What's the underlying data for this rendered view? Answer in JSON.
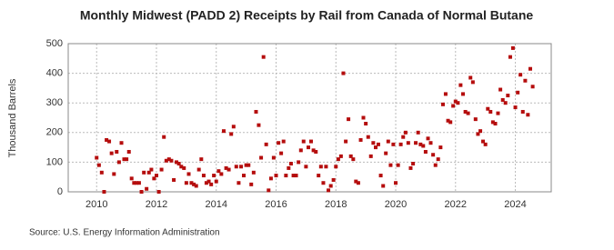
{
  "chart_data": {
    "type": "scatter",
    "title": "Monthly Midwest (PADD 2) Receipts by Rail from Canada of Normal Butane",
    "y_label": "Thousand Barrels",
    "source": "Source: U.S. Energy Information Administration",
    "xlim": [
      2009.05,
      2025.2
    ],
    "xticks": [
      2010,
      2012,
      2014,
      2016,
      2018,
      2020,
      2022,
      2024
    ],
    "ylim": [
      0,
      500
    ],
    "yticks": [
      0,
      100,
      200,
      300,
      400,
      500
    ],
    "grid": true,
    "series": [
      {
        "name": "Normal Butane",
        "color": "#b50d0d",
        "x": [
          2010,
          2010.08,
          2010.17,
          2010.25,
          2010.33,
          2010.42,
          2010.5,
          2010.58,
          2010.67,
          2010.75,
          2010.83,
          2010.92,
          2011,
          2011.08,
          2011.17,
          2011.25,
          2011.33,
          2011.42,
          2011.5,
          2011.58,
          2011.67,
          2011.75,
          2011.83,
          2011.92,
          2012,
          2012.08,
          2012.17,
          2012.25,
          2012.33,
          2012.42,
          2012.5,
          2012.58,
          2012.67,
          2012.75,
          2012.83,
          2012.92,
          2013,
          2013.08,
          2013.17,
          2013.25,
          2013.33,
          2013.42,
          2013.5,
          2013.58,
          2013.67,
          2013.75,
          2013.83,
          2013.92,
          2014,
          2014.08,
          2014.17,
          2014.25,
          2014.33,
          2014.42,
          2014.5,
          2014.58,
          2014.67,
          2014.75,
          2014.83,
          2014.92,
          2015,
          2015.08,
          2015.17,
          2015.25,
          2015.33,
          2015.42,
          2015.5,
          2015.58,
          2015.67,
          2015.75,
          2015.83,
          2015.92,
          2016,
          2016.08,
          2016.17,
          2016.25,
          2016.33,
          2016.42,
          2016.5,
          2016.58,
          2016.67,
          2016.75,
          2016.83,
          2016.92,
          2017,
          2017.08,
          2017.17,
          2017.25,
          2017.33,
          2017.42,
          2017.5,
          2017.58,
          2017.67,
          2017.75,
          2017.83,
          2017.92,
          2018,
          2018.08,
          2018.17,
          2018.25,
          2018.33,
          2018.42,
          2018.5,
          2018.58,
          2018.67,
          2018.75,
          2018.83,
          2018.92,
          2019,
          2019.08,
          2019.17,
          2019.25,
          2019.33,
          2019.42,
          2019.5,
          2019.58,
          2019.67,
          2019.75,
          2019.83,
          2019.92,
          2020,
          2020.08,
          2020.17,
          2020.25,
          2020.33,
          2020.42,
          2020.5,
          2020.58,
          2020.67,
          2020.75,
          2020.83,
          2020.92,
          2021,
          2021.08,
          2021.17,
          2021.25,
          2021.33,
          2021.42,
          2021.5,
          2021.58,
          2021.67,
          2021.75,
          2021.83,
          2021.92,
          2022,
          2022.08,
          2022.17,
          2022.25,
          2022.33,
          2022.42,
          2022.5,
          2022.58,
          2022.67,
          2022.75,
          2022.83,
          2022.92,
          2023,
          2023.08,
          2023.17,
          2023.25,
          2023.33,
          2023.42,
          2023.5,
          2023.58,
          2023.67,
          2023.75,
          2023.83,
          2023.92,
          2024,
          2024.08,
          2024.17,
          2024.25,
          2024.33,
          2024.42,
          2024.5,
          2024.58
        ],
        "values": [
          115,
          90,
          65,
          0,
          175,
          170,
          130,
          60,
          135,
          100,
          165,
          110,
          110,
          135,
          45,
          30,
          30,
          30,
          0,
          65,
          10,
          65,
          75,
          45,
          55,
          0,
          75,
          185,
          105,
          110,
          105,
          40,
          100,
          95,
          85,
          80,
          30,
          60,
          30,
          25,
          20,
          75,
          110,
          55,
          30,
          35,
          25,
          55,
          35,
          70,
          60,
          205,
          80,
          75,
          195,
          220,
          85,
          30,
          85,
          55,
          90,
          90,
          25,
          65,
          270,
          225,
          115,
          455,
          160,
          5,
          45,
          115,
          55,
          165,
          130,
          170,
          55,
          80,
          95,
          55,
          55,
          100,
          140,
          170,
          85,
          150,
          170,
          140,
          135,
          55,
          85,
          30,
          85,
          5,
          20,
          40,
          85,
          110,
          120,
          400,
          170,
          245,
          120,
          110,
          35,
          30,
          175,
          250,
          230,
          185,
          120,
          165,
          150,
          160,
          55,
          20,
          130,
          170,
          90,
          160,
          30,
          90,
          160,
          185,
          200,
          165,
          80,
          95,
          165,
          200,
          160,
          155,
          135,
          180,
          165,
          125,
          90,
          110,
          150,
          295,
          330,
          240,
          235,
          290,
          305,
          300,
          360,
          330,
          270,
          265,
          385,
          370,
          245,
          195,
          205,
          170,
          160,
          280,
          270,
          235,
          230,
          265,
          345,
          310,
          300,
          325,
          455,
          485,
          285,
          335,
          395,
          270,
          375,
          260,
          415,
          355
        ]
      }
    ]
  }
}
